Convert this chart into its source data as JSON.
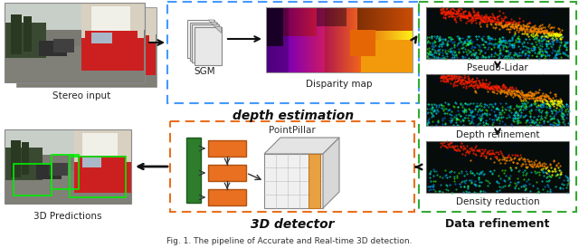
{
  "title": "Fig. 1. The pipeline of Accurate and Real-time 3D detection.",
  "bg_color": "#ffffff",
  "stereo_label": "Stereo input",
  "sgm_label": "SGM",
  "disparity_label": "Disparity map",
  "depth_est_label": "depth estimation",
  "pseudo_lidar_label": "Pseudo-Lidar",
  "depth_refinement_label": "Depth refinement",
  "density_reduction_label": "Density reduction",
  "data_refinement_label": "Data refinement",
  "pointpillar_label": "PointPillar",
  "detector_label": "3D detector",
  "predictions_label": "3D Predictions",
  "dashed_blue": "#4499ff",
  "dashed_green": "#33aa33",
  "dashed_orange": "#e87020",
  "orange_fill": "#e87020",
  "dark_green_fill": "#2d7a2d",
  "arrow_color": "#111111",
  "label_fontsize": 7.5,
  "section_fontsize": 9
}
